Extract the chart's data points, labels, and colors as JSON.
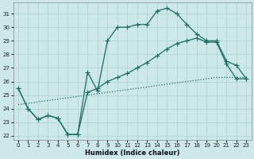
{
  "xlabel": "Humidex (Indice chaleur)",
  "bg_color": "#cce8e8",
  "line_color": "#1a6b60",
  "grid_color": "#aad4d0",
  "x_ticks": [
    0,
    1,
    2,
    3,
    4,
    5,
    6,
    7,
    8,
    9,
    10,
    11,
    12,
    13,
    14,
    15,
    16,
    17,
    18,
    19,
    20,
    21,
    22,
    23
  ],
  "y_ticks": [
    22,
    23,
    24,
    25,
    26,
    27,
    28,
    29,
    30,
    31
  ],
  "ylim": [
    21.7,
    31.8
  ],
  "xlim": [
    -0.5,
    23.5
  ],
  "curve1_x": [
    0,
    1,
    2,
    3,
    4,
    5,
    6,
    7,
    8,
    9,
    10,
    11,
    12,
    13,
    14,
    15,
    16,
    17,
    18,
    19,
    20,
    21,
    22,
    23
  ],
  "curve1_y": [
    25.5,
    24.0,
    23.2,
    23.5,
    23.3,
    22.1,
    22.1,
    26.7,
    25.3,
    29.0,
    30.0,
    30.0,
    30.2,
    30.2,
    31.2,
    31.4,
    31.0,
    30.2,
    29.5,
    29.0,
    29.0,
    27.5,
    27.2,
    26.2
  ],
  "curve2_x": [
    0,
    1,
    2,
    3,
    4,
    5,
    6,
    7,
    8,
    9,
    10,
    11,
    12,
    13,
    14,
    15,
    16,
    17,
    18,
    19,
    20,
    21,
    22,
    23
  ],
  "curve2_y": [
    25.5,
    24.0,
    23.2,
    23.5,
    23.3,
    22.1,
    22.1,
    25.2,
    25.5,
    26.0,
    26.3,
    26.6,
    27.0,
    27.4,
    27.9,
    28.4,
    28.8,
    29.0,
    29.2,
    28.9,
    28.9,
    27.3,
    26.2,
    26.2
  ],
  "curve3_x": [
    0,
    1,
    2,
    3,
    4,
    5,
    6,
    7,
    8,
    9,
    10,
    11,
    12,
    13,
    14,
    15,
    16,
    17,
    18,
    19,
    20,
    21,
    22,
    23
  ],
  "curve3_y": [
    24.3,
    24.4,
    24.5,
    24.6,
    24.7,
    24.8,
    24.9,
    25.0,
    25.1,
    25.2,
    25.3,
    25.4,
    25.5,
    25.6,
    25.7,
    25.8,
    25.9,
    26.0,
    26.1,
    26.2,
    26.3,
    26.3,
    26.3,
    26.3
  ]
}
